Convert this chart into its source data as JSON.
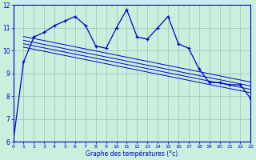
{
  "xlabel": "Graphe des températures (°c)",
  "bg_color": "#cceedd",
  "line_color": "#0000cc",
  "grid_color": "#99ccbb",
  "hours": [
    0,
    1,
    2,
    3,
    4,
    5,
    6,
    7,
    8,
    9,
    10,
    11,
    12,
    13,
    14,
    15,
    16,
    17,
    18,
    19,
    20,
    21,
    22,
    23
  ],
  "temp": [
    6.0,
    9.5,
    10.6,
    10.8,
    11.1,
    11.3,
    11.5,
    11.1,
    10.2,
    10.1,
    11.0,
    11.8,
    10.6,
    10.5,
    11.0,
    11.5,
    10.3,
    10.1,
    9.2,
    8.6,
    8.6,
    8.5,
    8.5,
    7.9
  ],
  "trend_lines": [
    {
      "x0": 1,
      "y0": 10.62,
      "x1": 23,
      "y1": 8.62
    },
    {
      "x0": 1,
      "y0": 10.45,
      "x1": 23,
      "y1": 8.45
    },
    {
      "x0": 1,
      "y0": 10.3,
      "x1": 23,
      "y1": 8.3
    },
    {
      "x0": 1,
      "y0": 10.15,
      "x1": 23,
      "y1": 8.15
    }
  ],
  "ylim": [
    6,
    12
  ],
  "xlim": [
    0,
    23
  ],
  "yticks": [
    6,
    7,
    8,
    9,
    10,
    11,
    12
  ],
  "xticks": [
    0,
    1,
    2,
    3,
    4,
    5,
    6,
    7,
    8,
    9,
    10,
    11,
    12,
    13,
    14,
    15,
    16,
    17,
    18,
    19,
    20,
    21,
    22,
    23
  ],
  "tick_fontsize": 4.5,
  "ytick_fontsize": 5.5,
  "xlabel_fontsize": 5.5
}
